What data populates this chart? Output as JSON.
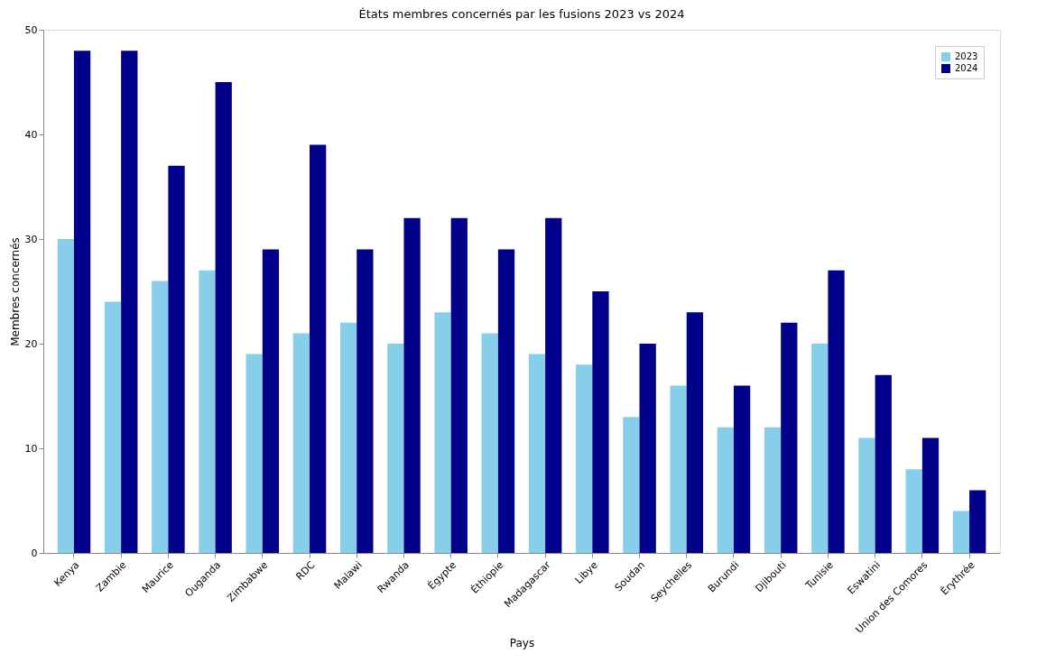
{
  "chart_data": {
    "type": "bar",
    "title": "États membres concernés par les fusions 2023 vs 2024",
    "xlabel": "Pays",
    "ylabel": "Membres concernés",
    "categories": [
      "Kenya",
      "Zambie",
      "Maurice",
      "Ouganda",
      "Zimbabwe",
      "RDC",
      "Malawi",
      "Rwanda",
      "Égypte",
      "Éthiopie",
      "Madagascar",
      "Libye",
      "Soudan",
      "Seychelles",
      "Burundi",
      "Djibouti",
      "Tunisie",
      "Eswatini",
      "Union des Comores",
      "Érythrée"
    ],
    "series": [
      {
        "name": "2023",
        "color": "#87ceeb",
        "values": [
          30,
          24,
          26,
          27,
          19,
          21,
          22,
          20,
          23,
          21,
          19,
          18,
          13,
          16,
          12,
          12,
          20,
          11,
          8,
          4
        ]
      },
      {
        "name": "2024",
        "color": "#00008b",
        "values": [
          48,
          48,
          37,
          45,
          29,
          39,
          29,
          32,
          32,
          29,
          32,
          25,
          20,
          23,
          16,
          22,
          27,
          17,
          11,
          6
        ]
      }
    ],
    "ylim": [
      0,
      50
    ],
    "yticks": [
      0,
      10,
      20,
      30,
      40,
      50
    ],
    "grid": false,
    "legend": "top right"
  }
}
